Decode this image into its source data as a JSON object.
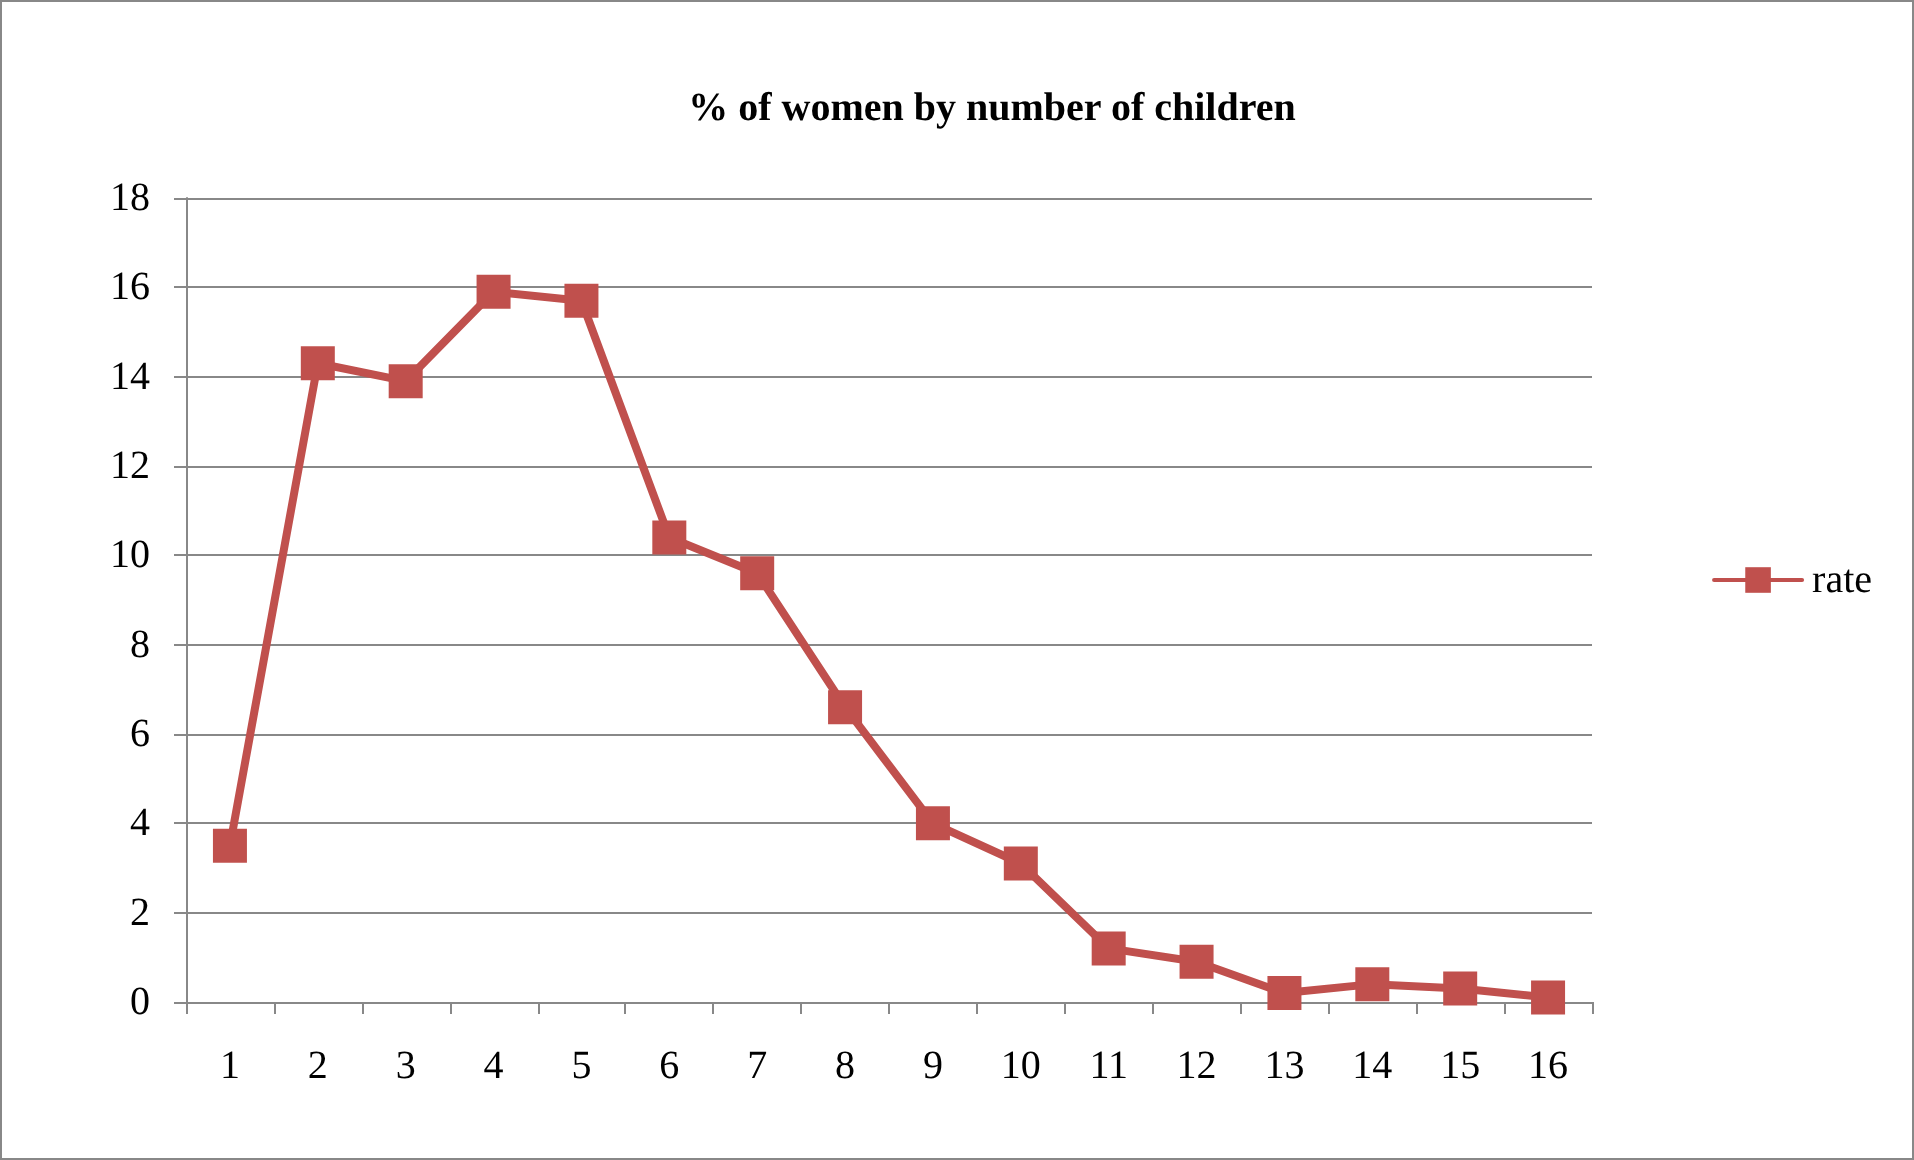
{
  "chart_data": {
    "type": "line",
    "title": "% of women by number of children",
    "categories": [
      "1",
      "2",
      "3",
      "4",
      "5",
      "6",
      "7",
      "8",
      "9",
      "10",
      "11",
      "12",
      "13",
      "14",
      "15",
      "16"
    ],
    "series": [
      {
        "name": "rate",
        "color": "#c0504d",
        "values": [
          3.5,
          14.3,
          13.9,
          15.9,
          15.7,
          10.4,
          9.6,
          6.6,
          4.0,
          3.1,
          1.2,
          0.9,
          0.2,
          0.4,
          0.3,
          0.1
        ]
      }
    ],
    "ylim": [
      0,
      18
    ],
    "yticks": [
      0,
      2,
      4,
      6,
      8,
      10,
      12,
      14,
      16,
      18
    ],
    "grid": "y",
    "legend": "right",
    "marker": "square",
    "line_style": "solid"
  }
}
